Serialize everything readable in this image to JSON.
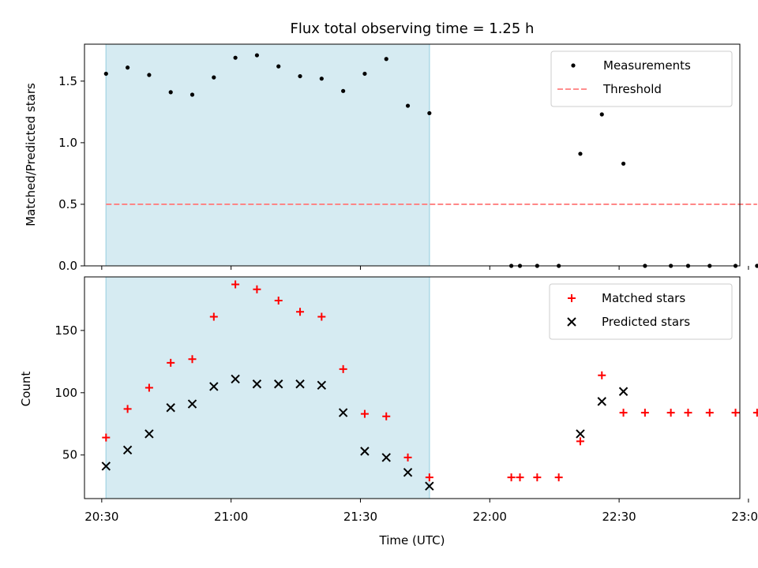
{
  "chart_data": [
    {
      "type": "scatter",
      "title": "Flux total observing time = 1.25 h",
      "xlabel": "",
      "ylabel": "Matched/Predicted stars",
      "xlim": [
        "20:26",
        "22:58"
      ],
      "ylim": [
        0,
        1.8
      ],
      "yticks": [
        "0.0",
        "0.5",
        "1.0",
        "1.5"
      ],
      "shaded_interval": [
        "20:31",
        "21:46"
      ],
      "legend_position": "upper-right",
      "series": [
        {
          "name": "Measurements",
          "color": "#000000",
          "marker": "dot",
          "x": [
            "20:31",
            "20:36",
            "20:41",
            "20:46",
            "20:51",
            "20:56",
            "21:01",
            "21:06",
            "21:11",
            "21:16",
            "21:21",
            "21:26",
            "21:31",
            "21:36",
            "21:41",
            "21:46",
            "22:05",
            "22:07",
            "22:11",
            "22:16",
            "22:21",
            "22:26",
            "22:31",
            "22:36",
            "22:42",
            "22:46",
            "22:51",
            "22:57",
            "23:02"
          ],
          "y": [
            1.56,
            1.61,
            1.55,
            1.41,
            1.39,
            1.53,
            1.69,
            1.71,
            1.62,
            1.54,
            1.52,
            1.42,
            1.56,
            1.68,
            1.3,
            1.24,
            0,
            0,
            0,
            0,
            0.91,
            1.23,
            0.83,
            0,
            0,
            0,
            0,
            0,
            0
          ]
        },
        {
          "name": "Threshold",
          "color": "#ff7f7f",
          "style": "dashed",
          "x": [
            "20:31",
            "23:02"
          ],
          "y": [
            0.5,
            0.5
          ]
        }
      ]
    },
    {
      "type": "scatter",
      "title": "",
      "xlabel": "Time (UTC)",
      "ylabel": "Count",
      "xlim": [
        "20:26",
        "22:58"
      ],
      "ylim": [
        15,
        193
      ],
      "xticks": [
        "20:30",
        "21:00",
        "21:30",
        "22:00",
        "22:30",
        "23:00"
      ],
      "yticks": [
        "50",
        "100",
        "150"
      ],
      "shaded_interval": [
        "20:31",
        "21:46"
      ],
      "legend_position": "upper-right",
      "series": [
        {
          "name": "Matched stars",
          "color": "#ff0000",
          "marker": "plus",
          "x": [
            "20:31",
            "20:36",
            "20:41",
            "20:46",
            "20:51",
            "20:56",
            "21:01",
            "21:06",
            "21:11",
            "21:16",
            "21:21",
            "21:26",
            "21:31",
            "21:36",
            "21:41",
            "21:46",
            "22:05",
            "22:07",
            "22:11",
            "22:16",
            "22:21",
            "22:26",
            "22:31",
            "22:36",
            "22:42",
            "22:46",
            "22:51",
            "22:57",
            "23:02"
          ],
          "y": [
            64,
            87,
            104,
            124,
            127,
            161,
            187,
            183,
            174,
            165,
            161,
            119,
            83,
            81,
            48,
            32,
            32,
            32,
            32,
            32,
            61,
            114,
            84,
            84,
            84,
            84,
            84,
            84,
            84
          ]
        },
        {
          "name": "Predicted stars",
          "color": "#000000",
          "marker": "x",
          "x": [
            "20:31",
            "20:36",
            "20:41",
            "20:46",
            "20:51",
            "20:56",
            "21:01",
            "21:06",
            "21:11",
            "21:16",
            "21:21",
            "21:26",
            "21:31",
            "21:36",
            "21:41",
            "21:46",
            "22:21",
            "22:26",
            "22:31"
          ],
          "y": [
            41,
            54,
            67,
            88,
            91,
            105,
            111,
            107,
            107,
            107,
            106,
            84,
            53,
            48,
            36,
            25,
            67,
            93,
            101
          ]
        }
      ]
    }
  ]
}
